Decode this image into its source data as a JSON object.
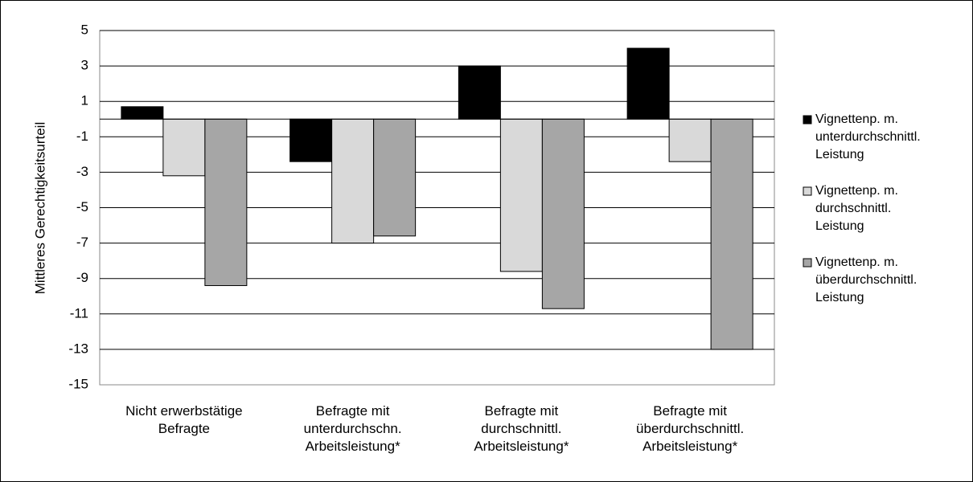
{
  "chart_data": {
    "type": "bar",
    "y_label": "Mittleres Gerechtigkeitsurteil",
    "categories": [
      "Nicht erwerbstätige Befragte",
      "Befragte mit unterdurchschn. Arbeitsleistung*",
      "Befragte mit durchschnittl. Arbeitsleistung*",
      "Befragte mit überdurchschnittl. Arbeitsleistung*"
    ],
    "series": [
      {
        "name": "Vignettenp. m. unterdurchschnittl. Leistung",
        "color": "#000000",
        "values": [
          0.7,
          -2.4,
          3.0,
          4.0
        ]
      },
      {
        "name": "Vignettenp. m. durchschnittl. Leistung",
        "color": "#d9d9d9",
        "values": [
          -3.2,
          -7.0,
          -8.6,
          -2.4
        ]
      },
      {
        "name": "Vignettenp. m. überdurchschnittl. Leistung",
        "color": "#a6a6a6",
        "values": [
          -9.4,
          -6.6,
          -10.7,
          -13.0
        ]
      }
    ],
    "ylim": [
      -15,
      5
    ],
    "yticks": [
      -15,
      -13,
      -11,
      -9,
      -7,
      -5,
      -3,
      -1,
      1,
      3,
      5
    ],
    "grid": true,
    "legend": "right"
  }
}
